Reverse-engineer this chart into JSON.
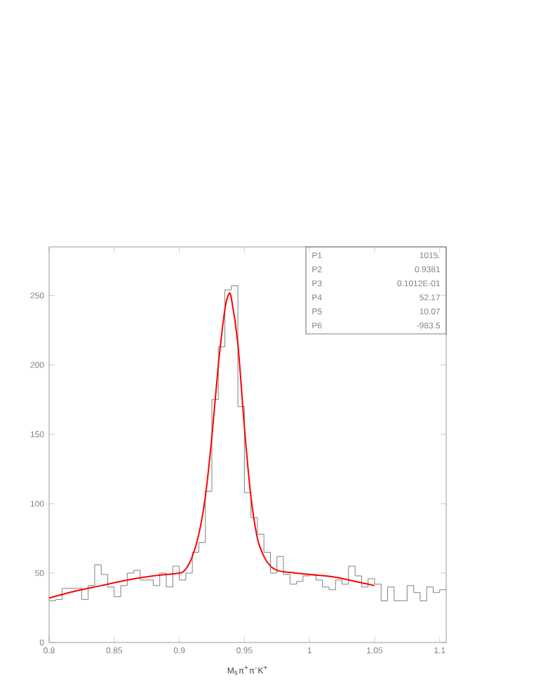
{
  "chart_data": {
    "type": "histogram",
    "xlabel": "M$_{s}$π$^{+}$π$^{-}$K$^{+}$",
    "xlim": [
      0.8,
      1.105
    ],
    "ylim": [
      0,
      285
    ],
    "xticks": [
      0.8,
      0.85,
      0.9,
      0.95,
      1,
      1.05,
      1.1
    ],
    "yticks": [
      0,
      50,
      100,
      150,
      200,
      250
    ],
    "bins": [
      0.8,
      0.805,
      0.81,
      0.815,
      0.82,
      0.825,
      0.83,
      0.835,
      0.84,
      0.845,
      0.85,
      0.855,
      0.86,
      0.865,
      0.87,
      0.875,
      0.88,
      0.885,
      0.89,
      0.895,
      0.9,
      0.905,
      0.91,
      0.915,
      0.92,
      0.925,
      0.93,
      0.935,
      0.94,
      0.945,
      0.95,
      0.955,
      0.96,
      0.965,
      0.97,
      0.975,
      0.98,
      0.985,
      0.99,
      0.995,
      1.0,
      1.005,
      1.01,
      1.015,
      1.02,
      1.025,
      1.03,
      1.035,
      1.04,
      1.045,
      1.05,
      1.055,
      1.06,
      1.065,
      1.07,
      1.075,
      1.08,
      1.085,
      1.09,
      1.095,
      1.1,
      1.105
    ],
    "series": [
      {
        "color": "#808080",
        "values": [
          30,
          31,
          39,
          39,
          39,
          31,
          41,
          56,
          49,
          40,
          33,
          41,
          50,
          52,
          45,
          45,
          41,
          50,
          40,
          55,
          45,
          50,
          65,
          72,
          109,
          175,
          213,
          254,
          257,
          170,
          108,
          90,
          78,
          65,
          50,
          62,
          49,
          42,
          44,
          48,
          49,
          45,
          40,
          38,
          45,
          42,
          55,
          48,
          40,
          46,
          42,
          30,
          40,
          30,
          30,
          41,
          36,
          30,
          40,
          36,
          38
        ]
      },
      {
        "type": "line",
        "color": "#ff0000",
        "x": [
          0.8,
          0.82,
          0.84,
          0.86,
          0.88,
          0.9,
          0.905,
          0.91,
          0.915,
          0.92,
          0.925,
          0.93,
          0.935,
          0.938,
          0.94,
          0.945,
          0.95,
          0.955,
          0.96,
          0.965,
          0.97,
          0.975,
          0.98,
          1.0,
          1.02,
          1.04,
          1.05
        ],
        "values": [
          32,
          37,
          41,
          45,
          48,
          50,
          53,
          62,
          78,
          105,
          148,
          200,
          240,
          251,
          248,
          215,
          155,
          105,
          75,
          62,
          55,
          52,
          51,
          49,
          47,
          43,
          41
        ]
      }
    ],
    "annotations": [
      "P1",
      "1015.",
      "P2",
      "0.9381",
      "P3",
      "0.1012E-01",
      "P4",
      "52.17",
      "P5",
      "10.07",
      "P6",
      "-983.5"
    ]
  }
}
